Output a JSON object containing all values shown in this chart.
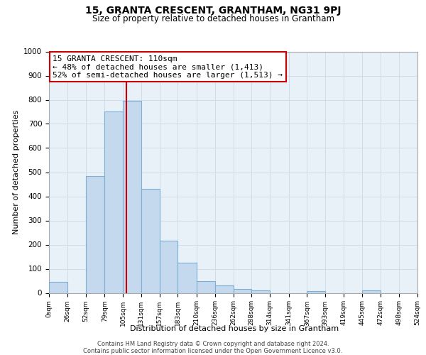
{
  "title": "15, GRANTA CRESCENT, GRANTHAM, NG31 9PJ",
  "subtitle": "Size of property relative to detached houses in Grantham",
  "xlabel": "Distribution of detached houses by size in Grantham",
  "ylabel": "Number of detached properties",
  "bar_left_edges": [
    0,
    26,
    52,
    79,
    105,
    131,
    157,
    183,
    210,
    236,
    262,
    288,
    314,
    341,
    367,
    393,
    419,
    445,
    472,
    498
  ],
  "bar_widths": [
    26,
    27,
    27,
    26,
    26,
    26,
    26,
    27,
    26,
    26,
    26,
    26,
    27,
    26,
    26,
    26,
    26,
    27,
    26,
    26
  ],
  "bar_heights": [
    45,
    0,
    485,
    750,
    795,
    432,
    217,
    125,
    50,
    30,
    17,
    10,
    0,
    0,
    8,
    0,
    0,
    10,
    0,
    0
  ],
  "bar_color": "#c5d9ee",
  "bar_edge_color": "#7bafd4",
  "property_line_x": 110,
  "annotation_line1": "15 GRANTA CRESCENT: 110sqm",
  "annotation_line2": "← 48% of detached houses are smaller (1,413)",
  "annotation_line3": "52% of semi-detached houses are larger (1,513) →",
  "annotation_box_color": "#ffffff",
  "annotation_box_edge": "#cc0000",
  "vline_color": "#cc0000",
  "ylim": [
    0,
    1000
  ],
  "xlim": [
    0,
    524
  ],
  "xtick_positions": [
    0,
    26,
    52,
    79,
    105,
    131,
    157,
    183,
    210,
    236,
    262,
    288,
    314,
    341,
    367,
    393,
    419,
    445,
    472,
    498,
    524
  ],
  "xtick_labels": [
    "0sqm",
    "26sqm",
    "52sqm",
    "79sqm",
    "105sqm",
    "131sqm",
    "157sqm",
    "183sqm",
    "210sqm",
    "236sqm",
    "262sqm",
    "288sqm",
    "314sqm",
    "341sqm",
    "367sqm",
    "393sqm",
    "419sqm",
    "445sqm",
    "472sqm",
    "498sqm",
    "524sqm"
  ],
  "ytick_positions": [
    0,
    100,
    200,
    300,
    400,
    500,
    600,
    700,
    800,
    900,
    1000
  ],
  "grid_color": "#d0dce8",
  "background_color": "#e8f0f8",
  "figure_color": "#ffffff",
  "footer_line1": "Contains HM Land Registry data © Crown copyright and database right 2024.",
  "footer_line2": "Contains public sector information licensed under the Open Government Licence v3.0."
}
